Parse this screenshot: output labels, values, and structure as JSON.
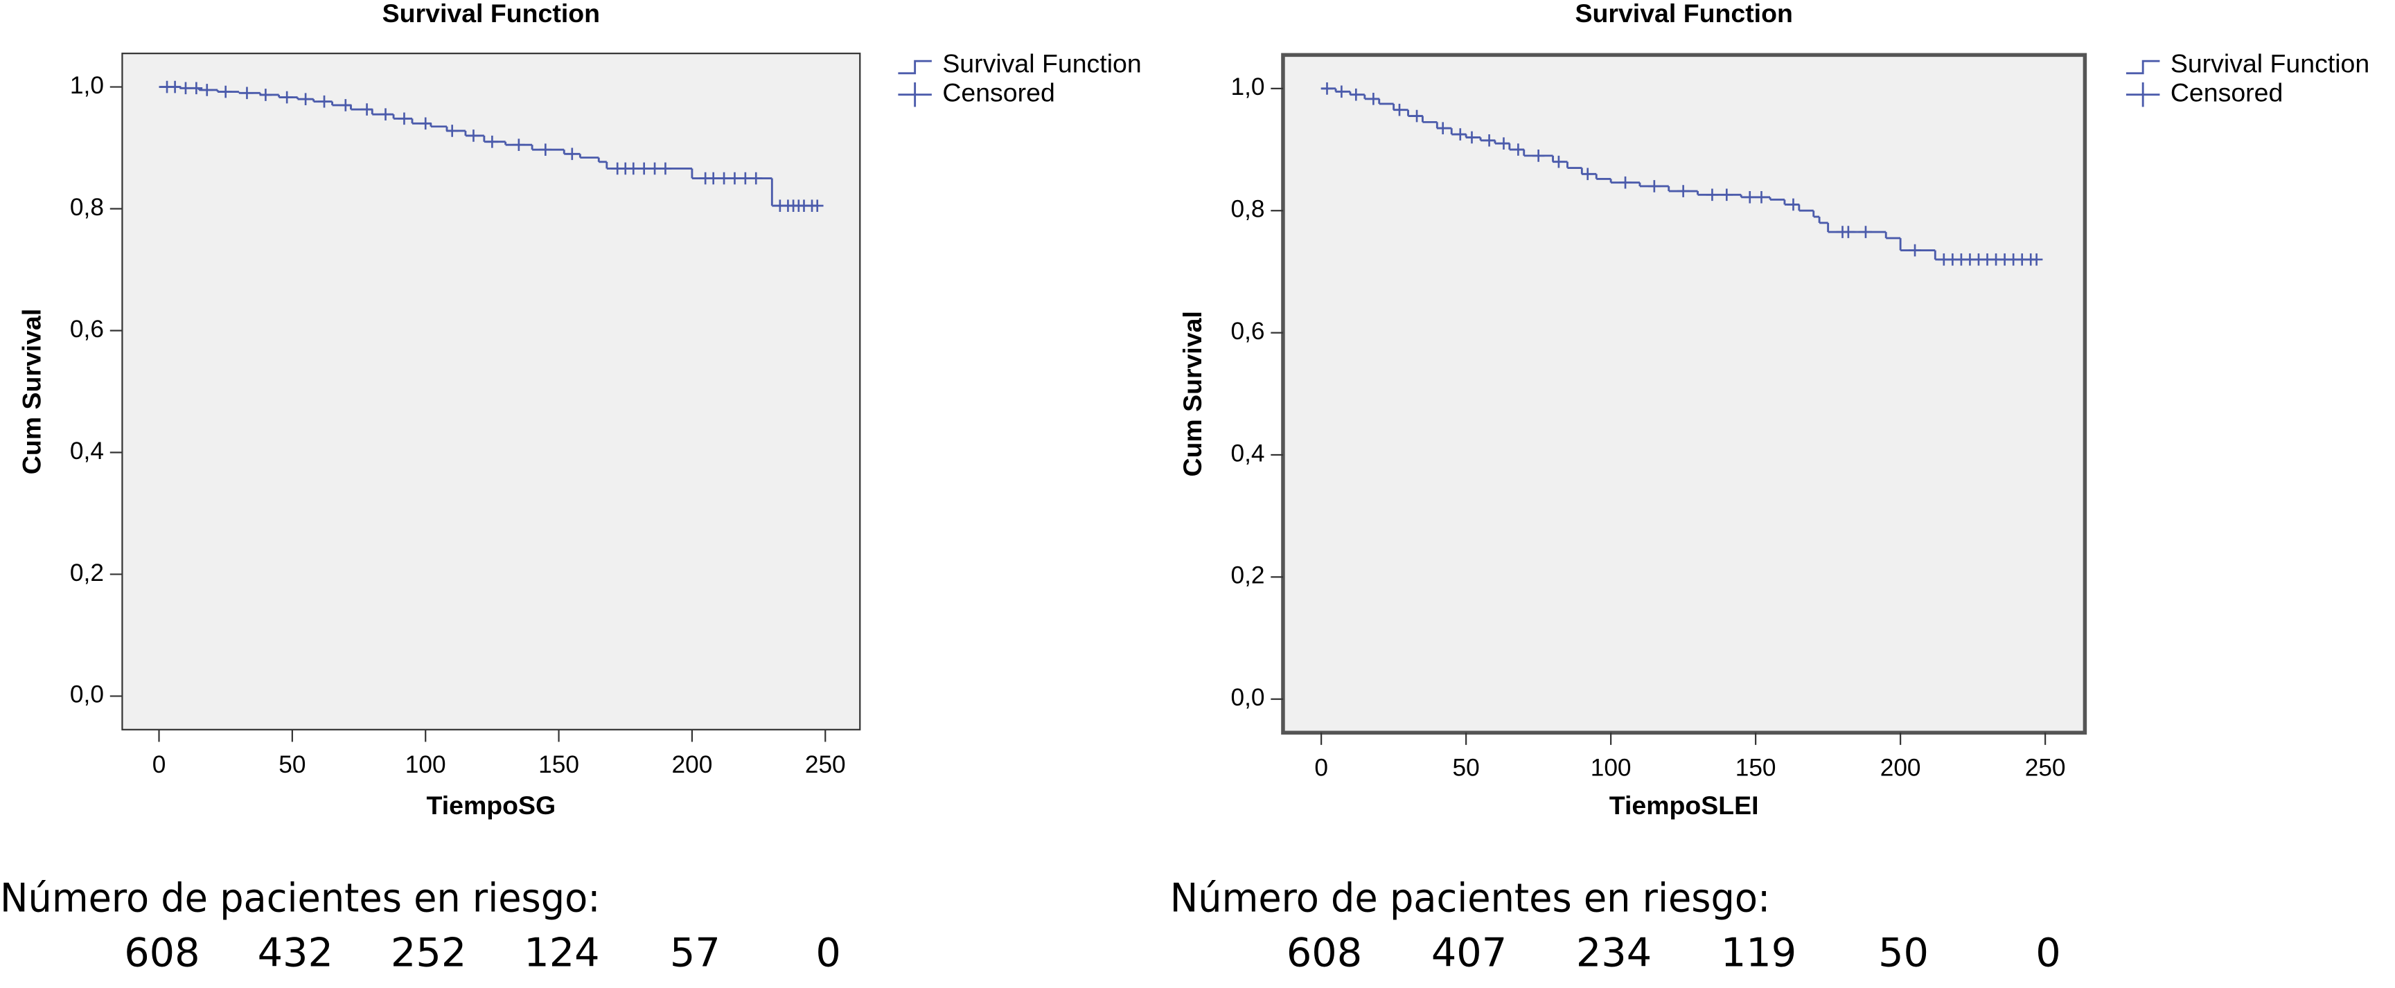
{
  "chart_data": [
    {
      "type": "km",
      "title": "Survival Function",
      "x_label": "TiempoSG",
      "y_label": "Cum Survival",
      "xlim": [
        -13.8,
        263
      ],
      "ylim": [
        -0.055,
        1.055
      ],
      "xticks": [
        0,
        50,
        100,
        150,
        200,
        250
      ],
      "yticks": [
        {
          "value": 0,
          "label": "0,0"
        },
        {
          "value": 0.2,
          "label": "0,2"
        },
        {
          "value": 0.4,
          "label": "0,4"
        },
        {
          "value": 0.6,
          "label": "0,6"
        },
        {
          "value": 0.8,
          "label": "0,8"
        },
        {
          "value": 1,
          "label": "1,0"
        }
      ],
      "series": [
        {
          "name": "Survival Function",
          "color": "#4b5bab",
          "x": [
            0,
            8,
            15,
            22,
            30,
            38,
            45,
            52,
            58,
            65,
            72,
            80,
            88,
            95,
            102,
            108,
            115,
            122,
            130,
            140,
            152,
            158,
            165,
            168,
            180,
            200,
            230,
            247
          ],
          "values": [
            1,
            0.998,
            0.995,
            0.992,
            0.99,
            0.987,
            0.983,
            0.98,
            0.976,
            0.97,
            0.963,
            0.955,
            0.948,
            0.94,
            0.935,
            0.928,
            0.92,
            0.91,
            0.905,
            0.897,
            0.89,
            0.884,
            0.877,
            0.866,
            0.866,
            0.85,
            0.805,
            0.805
          ]
        },
        {
          "name": "Censored",
          "color": "#4b5bab",
          "x": [
            3,
            6,
            10,
            14,
            18,
            25,
            33,
            40,
            48,
            55,
            62,
            70,
            78,
            85,
            92,
            100,
            110,
            118,
            125,
            135,
            145,
            155,
            172,
            175,
            178,
            182,
            186,
            190,
            205,
            208,
            212,
            216,
            220,
            224,
            233,
            236,
            238,
            240,
            242,
            245,
            247
          ],
          "values": [
            1,
            1,
            0.998,
            0.998,
            0.995,
            0.992,
            0.99,
            0.987,
            0.983,
            0.98,
            0.976,
            0.97,
            0.963,
            0.955,
            0.948,
            0.94,
            0.928,
            0.92,
            0.91,
            0.905,
            0.897,
            0.89,
            0.866,
            0.866,
            0.866,
            0.866,
            0.866,
            0.866,
            0.85,
            0.85,
            0.85,
            0.85,
            0.85,
            0.85,
            0.805,
            0.805,
            0.805,
            0.805,
            0.805,
            0.805,
            0.805
          ]
        }
      ],
      "risk_label": "Número de pacientes en riesgo:",
      "at_risk": [
        608,
        432,
        252,
        124,
        57,
        0
      ]
    },
    {
      "type": "km",
      "title": "Survival Function",
      "x_label": "TiempoSLEI",
      "y_label": "Cum Survival",
      "xlim": [
        -13.2,
        263.7
      ],
      "ylim": [
        -0.055,
        1.055
      ],
      "xticks": [
        0,
        50,
        100,
        150,
        200,
        250
      ],
      "yticks": [
        {
          "value": 0,
          "label": "0,0"
        },
        {
          "value": 0.2,
          "label": "0,2"
        },
        {
          "value": 0.4,
          "label": "0,4"
        },
        {
          "value": 0.6,
          "label": "0,6"
        },
        {
          "value": 0.8,
          "label": "0,8"
        },
        {
          "value": 1,
          "label": "1,0"
        }
      ],
      "series": [
        {
          "name": "Survival Function",
          "color": "#4b5bab",
          "x": [
            0,
            5,
            10,
            15,
            20,
            25,
            30,
            35,
            40,
            45,
            50,
            55,
            60,
            65,
            70,
            80,
            85,
            90,
            95,
            100,
            110,
            120,
            130,
            145,
            155,
            160,
            165,
            170,
            172,
            175,
            185,
            195,
            200,
            212,
            247
          ],
          "values": [
            1,
            0.995,
            0.99,
            0.983,
            0.975,
            0.965,
            0.955,
            0.945,
            0.935,
            0.925,
            0.92,
            0.915,
            0.91,
            0.9,
            0.89,
            0.88,
            0.87,
            0.86,
            0.852,
            0.846,
            0.84,
            0.832,
            0.826,
            0.822,
            0.818,
            0.81,
            0.8,
            0.79,
            0.78,
            0.765,
            0.765,
            0.755,
            0.735,
            0.72,
            0.72
          ]
        },
        {
          "name": "Censored",
          "color": "#4b5bab",
          "x": [
            2,
            7,
            12,
            18,
            27,
            33,
            42,
            48,
            52,
            58,
            63,
            68,
            75,
            82,
            92,
            105,
            115,
            125,
            135,
            140,
            148,
            152,
            163,
            180,
            182,
            188,
            205,
            215,
            218,
            221,
            224,
            227,
            230,
            233,
            236,
            239,
            242,
            245,
            247
          ],
          "values": [
            1,
            0.995,
            0.99,
            0.983,
            0.965,
            0.955,
            0.935,
            0.925,
            0.92,
            0.915,
            0.91,
            0.9,
            0.89,
            0.88,
            0.86,
            0.846,
            0.84,
            0.832,
            0.826,
            0.826,
            0.822,
            0.822,
            0.81,
            0.765,
            0.765,
            0.765,
            0.735,
            0.72,
            0.72,
            0.72,
            0.72,
            0.72,
            0.72,
            0.72,
            0.72,
            0.72,
            0.72,
            0.72,
            0.72
          ]
        }
      ],
      "risk_label": "Número de pacientes en riesgo:",
      "at_risk": [
        608,
        407,
        234,
        119,
        50,
        0
      ]
    }
  ]
}
